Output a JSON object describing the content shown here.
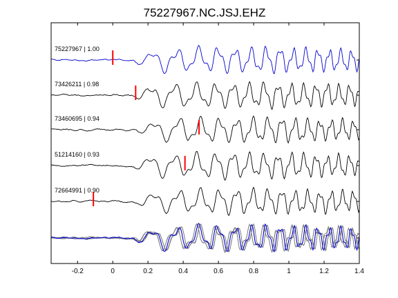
{
  "chart_data": {
    "type": "line",
    "title": "75227967.NC.JSJ.EHZ",
    "xlabel": "",
    "ylabel": "",
    "xlim": [
      -0.35,
      1.4
    ],
    "x_ticks": [
      -0.2,
      0,
      0.2,
      0.4,
      0.6,
      0.8,
      1,
      1.2,
      1.4
    ],
    "x_tick_labels": [
      "-0.2",
      "0",
      "0.2",
      "0.4",
      "0.6",
      "0.8",
      "1",
      "1.2",
      "1.4"
    ],
    "grid": false,
    "legend": "none",
    "colors": {
      "reference": "#0000cc",
      "trace": "#000000",
      "pick": "#ff0000",
      "stack_overlay": "#808080"
    },
    "series": [
      {
        "label": "75227967 | 1.00",
        "event_id": "75227967",
        "correlation": 1.0,
        "pick_time": 0.0,
        "color": "#0000cc"
      },
      {
        "label": "73426211 | 0.98",
        "event_id": "73426211",
        "correlation": 0.98,
        "pick_time": 0.13,
        "color": "#000000"
      },
      {
        "label": "73460695 | 0.94",
        "event_id": "73460695",
        "correlation": 0.94,
        "pick_time": 0.49,
        "color": "#000000"
      },
      {
        "label": "51214160 | 0.93",
        "event_id": "51214160",
        "correlation": 0.93,
        "pick_time": 0.41,
        "color": "#000000"
      },
      {
        "label": "72664991 | 0.90",
        "event_id": "72664991",
        "correlation": 0.9,
        "pick_time": -0.11,
        "color": "#000000"
      }
    ],
    "overlay": {
      "description_visible": false,
      "traces_count": 5
    }
  }
}
